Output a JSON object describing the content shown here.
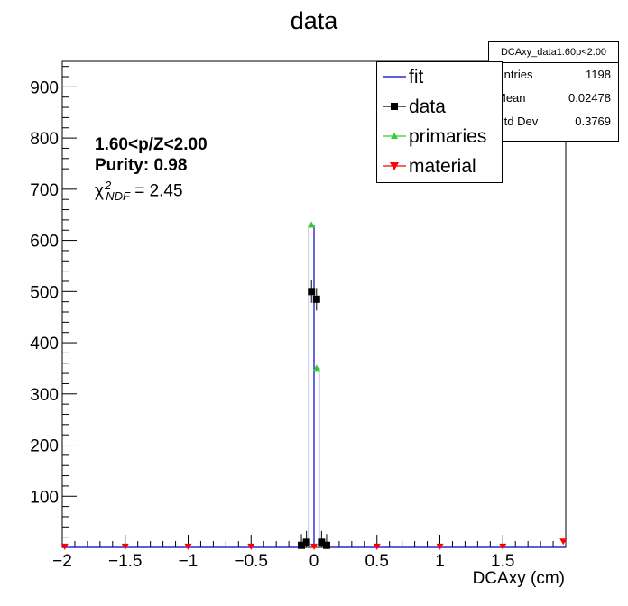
{
  "chart_data": {
    "type": "histogram",
    "title": "data",
    "xlabel": "DCAxy (cm)",
    "ylabel": "",
    "xlim": [
      -2,
      2
    ],
    "ylim": [
      0,
      950
    ],
    "xticks": [
      -2,
      -1.5,
      -1,
      -0.5,
      0,
      0.5,
      1,
      1.5
    ],
    "xtick_labels": [
      "−2",
      "−1.5",
      "−1",
      "−0.5",
      "0",
      "0.5",
      "1",
      "1.5"
    ],
    "yticks": [
      100,
      200,
      300,
      400,
      500,
      600,
      700,
      800,
      900
    ],
    "ytick_labels": [
      "100",
      "200",
      "300",
      "400",
      "500",
      "600",
      "700",
      "800",
      "900"
    ],
    "bin_width": 0.04,
    "colors": {
      "fit": "#0000cc",
      "data": "#000000",
      "primaries": "#33cc33",
      "material": "#ff0000"
    },
    "series": [
      {
        "name": "fit",
        "style": "histogram",
        "x": [
          -0.06,
          -0.02,
          0.02,
          0.06
        ],
        "y": [
          3,
          630,
          350,
          3
        ]
      },
      {
        "name": "data",
        "style": "markers-errors",
        "x": [
          -0.1,
          -0.06,
          -0.02,
          0.02,
          0.06,
          0.1
        ],
        "y": [
          4,
          10,
          500,
          485,
          10,
          4
        ]
      },
      {
        "name": "primaries",
        "style": "triangle-up",
        "x": [
          -0.02,
          0.02
        ],
        "y": [
          630,
          350
        ]
      },
      {
        "name": "material",
        "style": "triangle-down",
        "note": "near zero across full range",
        "x": [
          -1.98,
          -1.5,
          -1.0,
          -0.5,
          0.0,
          0.5,
          1.0,
          1.5,
          1.98
        ],
        "y": [
          2,
          2,
          2,
          2,
          2,
          2,
          2,
          2,
          12
        ]
      }
    ],
    "legend": {
      "placement": "top-right",
      "entries": [
        "fit",
        "data",
        "primaries",
        "material"
      ]
    },
    "annotations": {
      "line1": "1.60<p/Z<2.00",
      "line2": "Purity: 0.98",
      "chi_symbol": "χ",
      "chi_sub": "NDF",
      "chi_sup": "2",
      "chi_value": " = 2.45"
    },
    "stats_box": {
      "title": "DCAxy_data1.60p<2.00",
      "rows": [
        {
          "label": "Entries",
          "value": "1198"
        },
        {
          "label": "Mean",
          "value": "0.02478"
        },
        {
          "label": "Std Dev",
          "value": "0.3769"
        }
      ]
    }
  }
}
